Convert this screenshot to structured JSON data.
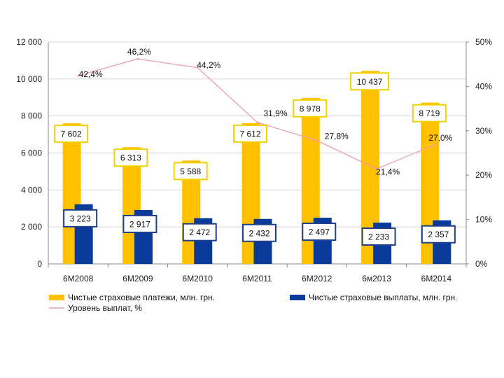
{
  "chart_data": {
    "type": "bar",
    "categories": [
      "6M2008",
      "6M2009",
      "6M2010",
      "6M2011",
      "6M2012",
      "6м2013",
      "6M2014"
    ],
    "series": [
      {
        "name": "Чистые страховые платежи, млн. грн.",
        "kind": "bar",
        "color": "#FFC000",
        "values": [
          7602,
          6313,
          5588,
          7612,
          8978,
          10437,
          8719
        ],
        "labels": [
          "7 602",
          "6 313",
          "5 588",
          "7 612",
          "8 978",
          "10 437",
          "8 719"
        ]
      },
      {
        "name": "Чистые страховые выплаты, млн. грн.",
        "kind": "bar",
        "color": "#0A3A9A",
        "values": [
          3223,
          2917,
          2472,
          2432,
          2497,
          2233,
          2357
        ],
        "labels": [
          "3 223",
          "2 917",
          "2 472",
          "2 432",
          "2 497",
          "2 233",
          "2 357"
        ]
      },
      {
        "name": "Уровень выплат, %",
        "kind": "line",
        "axis": "right",
        "color": "#E8A0B0",
        "values": [
          42.4,
          46.2,
          44.2,
          31.9,
          27.8,
          21.4,
          27.0
        ],
        "labels": [
          "42,4%",
          "46,2%",
          "44,2%",
          "31,9%",
          "27,8%",
          "21,4%",
          "27,0%"
        ]
      }
    ],
    "y_left": {
      "range": [
        0,
        12000
      ],
      "ticks": [
        0,
        2000,
        4000,
        6000,
        8000,
        10000,
        12000
      ],
      "tick_labels": [
        "0",
        "2 000",
        "4 000",
        "6 000",
        "8 000",
        "10 000",
        "12 000"
      ]
    },
    "y_right": {
      "range": [
        0,
        50
      ],
      "ticks": [
        0,
        10,
        20,
        30,
        40,
        50
      ],
      "tick_labels": [
        "0%",
        "10%",
        "20%",
        "30%",
        "40%",
        "50%"
      ]
    },
    "grid": "horizontal",
    "legend_position": "bottom"
  }
}
